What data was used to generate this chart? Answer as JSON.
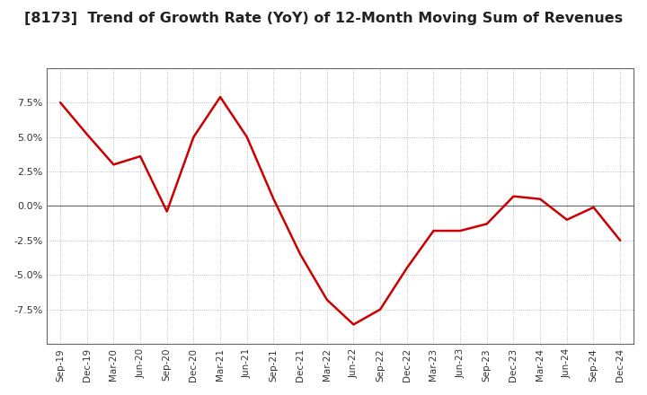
{
  "title": "[8173]  Trend of Growth Rate (YoY) of 12-Month Moving Sum of Revenues",
  "title_fontsize": 11.5,
  "line_color": "#cc0000",
  "background_color": "#ffffff",
  "grid_color": "#aaaaaa",
  "zero_line_color": "#666666",
  "border_color": "#666666",
  "x_labels": [
    "Sep-19",
    "Dec-19",
    "Mar-20",
    "Jun-20",
    "Sep-20",
    "Dec-20",
    "Mar-21",
    "Jun-21",
    "Sep-21",
    "Dec-21",
    "Mar-22",
    "Jun-22",
    "Sep-22",
    "Dec-22",
    "Mar-23",
    "Jun-23",
    "Sep-23",
    "Dec-23",
    "Mar-24",
    "Jun-24",
    "Sep-24",
    "Dec-24"
  ],
  "y_values": [
    7.5,
    5.2,
    3.0,
    3.6,
    -0.4,
    5.0,
    7.9,
    5.0,
    0.5,
    -3.5,
    -6.8,
    -8.6,
    -7.5,
    -4.5,
    -1.8,
    -1.8,
    -1.3,
    0.7,
    0.5,
    -1.0,
    -0.1,
    -2.5
  ],
  "ylim": [
    -10.0,
    10.0
  ],
  "yticks": [
    -7.5,
    -5.0,
    -2.5,
    0.0,
    2.5,
    5.0,
    7.5
  ]
}
